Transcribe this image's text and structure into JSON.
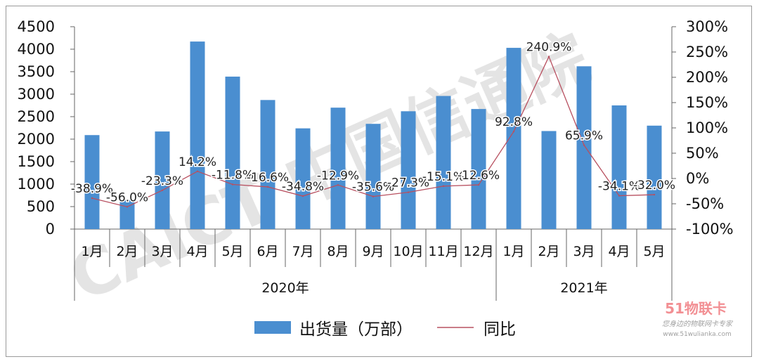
{
  "chart_data": {
    "type": "bar+line",
    "categories": [
      "1月",
      "2月",
      "3月",
      "4月",
      "5月",
      "6月",
      "7月",
      "8月",
      "9月",
      "10月",
      "11月",
      "12月",
      "1月",
      "2月",
      "3月",
      "4月",
      "5月"
    ],
    "groups": [
      {
        "label": "2020年",
        "from": 0,
        "to": 11
      },
      {
        "label": "2021年",
        "from": 12,
        "to": 16
      }
    ],
    "series": [
      {
        "name": "出货量（万部）",
        "kind": "bar",
        "color": "#4a8ed0",
        "axis": "left",
        "values": [
          2090,
          640,
          2170,
          4170,
          3390,
          2870,
          2240,
          2700,
          2340,
          2620,
          2960,
          2670,
          4030,
          2180,
          3620,
          2750,
          2300
        ]
      },
      {
        "name": "同比",
        "kind": "line",
        "color": "#b85060",
        "axis": "right",
        "values": [
          -38.9,
          -56.0,
          -23.3,
          14.2,
          -11.8,
          -16.6,
          -34.8,
          -12.9,
          -35.6,
          -27.3,
          -15.1,
          -12.6,
          92.8,
          240.9,
          65.9,
          -34.1,
          -32.0
        ],
        "labels": [
          "-38.9%",
          "-56.0%",
          "-23.3%",
          "14.2%",
          "-11.8%",
          "-16.6%",
          "-34.8%",
          "-12.9%",
          "-35.6%",
          "-27.3%",
          "-15.1%",
          "-12.6%",
          "92.8%",
          "240.9%",
          "65.9%",
          "-34.1%",
          "-32.0%"
        ]
      }
    ],
    "left_axis": {
      "ylim": [
        0,
        4500
      ],
      "ticks": [
        "0",
        "500",
        "1000",
        "1500",
        "2000",
        "2500",
        "3000",
        "3500",
        "4000",
        "4500"
      ]
    },
    "right_axis": {
      "ylim": [
        -100,
        300
      ],
      "ticks": [
        "-100%",
        "-50%",
        "0%",
        "50%",
        "100%",
        "150%",
        "200%",
        "250%",
        "300%"
      ]
    },
    "legend": {
      "position": "bottom",
      "bar_label": "出货量（万部）",
      "line_label": "同比"
    },
    "grid": false
  },
  "watermark": {
    "text": "CAICT 中国信通院",
    "color": "#8a8a8a"
  },
  "brand": {
    "logo_text": "51物联卡",
    "tagline": "您身边的物联网卡专家",
    "url": "www.51wulianka.com",
    "accent": "#e8343c"
  }
}
